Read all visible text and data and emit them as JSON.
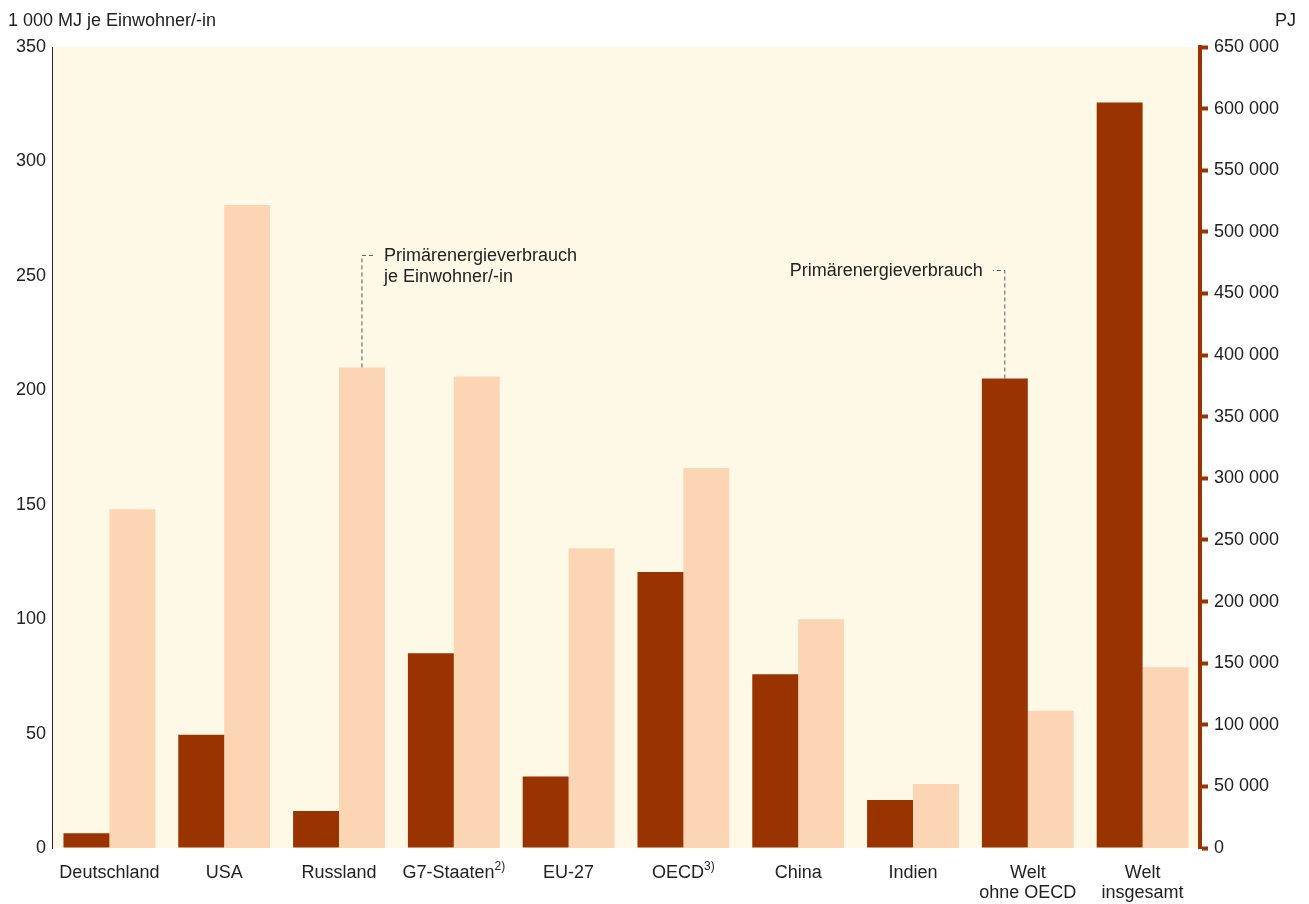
{
  "chart_data": {
    "type": "bar",
    "ylabel": "1 000 MJ je Einwohner/-in",
    "y2label": "PJ",
    "categories": [
      "Deutschland",
      "USA",
      "Russland",
      "G7-Staaten$^{2)}$",
      "EU-27",
      "OECD$^{3)}$",
      "China",
      "Indien",
      "Welt\nohne OECD",
      "Welt\ninsgesamt"
    ],
    "series": [
      {
        "name": "Primärenergieverbrauch",
        "color": "#993300",
        "axis": "y2",
        "values": [
          12000,
          92000,
          30000,
          158000,
          58000,
          224000,
          141000,
          39000,
          381000,
          605000
        ]
      },
      {
        "name": "Primärenergieverbrauch\nje Einwohner/-in",
        "color": "#fcd5b5",
        "values": [
          148,
          281,
          210,
          206,
          131,
          166,
          100,
          28,
          60,
          79
        ]
      }
    ],
    "ylim": [
      0,
      350
    ],
    "yticks": [
      0,
      50,
      100,
      150,
      200,
      250,
      300,
      350
    ],
    "y2lim": [
      0,
      650000
    ],
    "y2ticks": [
      0,
      {
        "value": 50000,
        "label": "50 000"
      },
      {
        "value": 100000,
        "label": "100 000"
      },
      {
        "value": 150000,
        "label": "150 000"
      },
      {
        "value": 200000,
        "label": "200 000"
      },
      {
        "value": 250000,
        "label": "250 000"
      },
      {
        "value": 300000,
        "label": "300 000"
      },
      {
        "value": 350000,
        "label": "350 000"
      },
      {
        "value": 400000,
        "label": "400 000"
      },
      {
        "value": 450000,
        "label": "450 000"
      },
      {
        "value": 500000,
        "label": "500 000"
      },
      {
        "value": 550000,
        "label": "550 000"
      },
      {
        "value": 600000,
        "label": "600 000"
      },
      {
        "value": 650000,
        "label": "650 000"
      }
    ],
    "grid": false,
    "legend": false
  }
}
